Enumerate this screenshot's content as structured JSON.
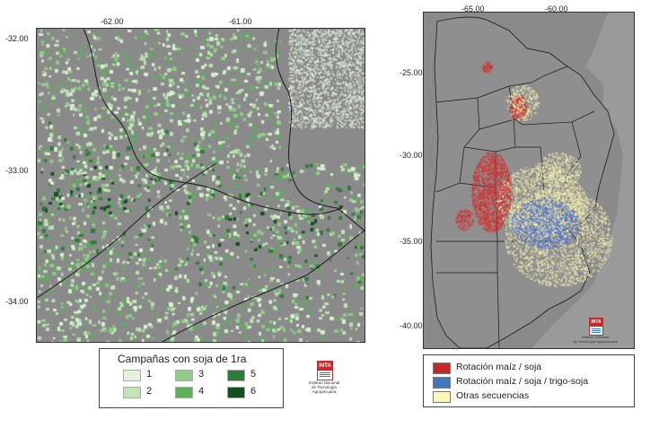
{
  "left_map": {
    "x_ticks": [
      "-62.00",
      "-61.00"
    ],
    "y_ticks": [
      "-32.00",
      "-33.00",
      "-34.00"
    ],
    "colors": {
      "background": "#8a8a8a",
      "boundary": "#1a1a1a",
      "soy_palette": [
        "#d9efd2",
        "#b9e2b0",
        "#8fcc86",
        "#5fae5d",
        "#2f7d3a",
        "#184d22"
      ]
    }
  },
  "left_legend": {
    "title": "Campañas con soja de 1ra",
    "items": [
      {
        "label": "1",
        "color": "#e2f2dc"
      },
      {
        "label": "2",
        "color": "#c2e6b9"
      },
      {
        "label": "3",
        "color": "#8fcc86"
      },
      {
        "label": "4",
        "color": "#5fae5d"
      },
      {
        "label": "5",
        "color": "#2f7d3a"
      },
      {
        "label": "6",
        "color": "#184d22"
      }
    ]
  },
  "inta_logo_left": {
    "mark": "INTA",
    "caption_1": "Instituto Nacional",
    "caption_2": "de Tecnología Agropecuaria"
  },
  "right_map": {
    "x_ticks": [
      "-65.00",
      "-60.00"
    ],
    "y_ticks": [
      "-25.00",
      "-30.00",
      "-35.00",
      "-40.00"
    ],
    "colors": {
      "background": "#8a8a8a",
      "boundary": "#1a1a1a",
      "maiz_soja": "#d32f2f",
      "maiz_soja_trigo": "#4a6fd6",
      "otras": "#f3f0b0"
    }
  },
  "inta_logo_right": {
    "mark": "INTA",
    "caption_1": "Instituto Nacional",
    "caption_2": "de Tecnología Agropecuaria"
  },
  "right_legend": {
    "items": [
      {
        "label": "Rotación maíz / soja",
        "color": "#c62828"
      },
      {
        "label": "Rotación maíz / soja / trigo-soja",
        "color": "#3f78c0"
      },
      {
        "label": "Otras secuencias",
        "color": "#fbf7b8"
      }
    ]
  }
}
